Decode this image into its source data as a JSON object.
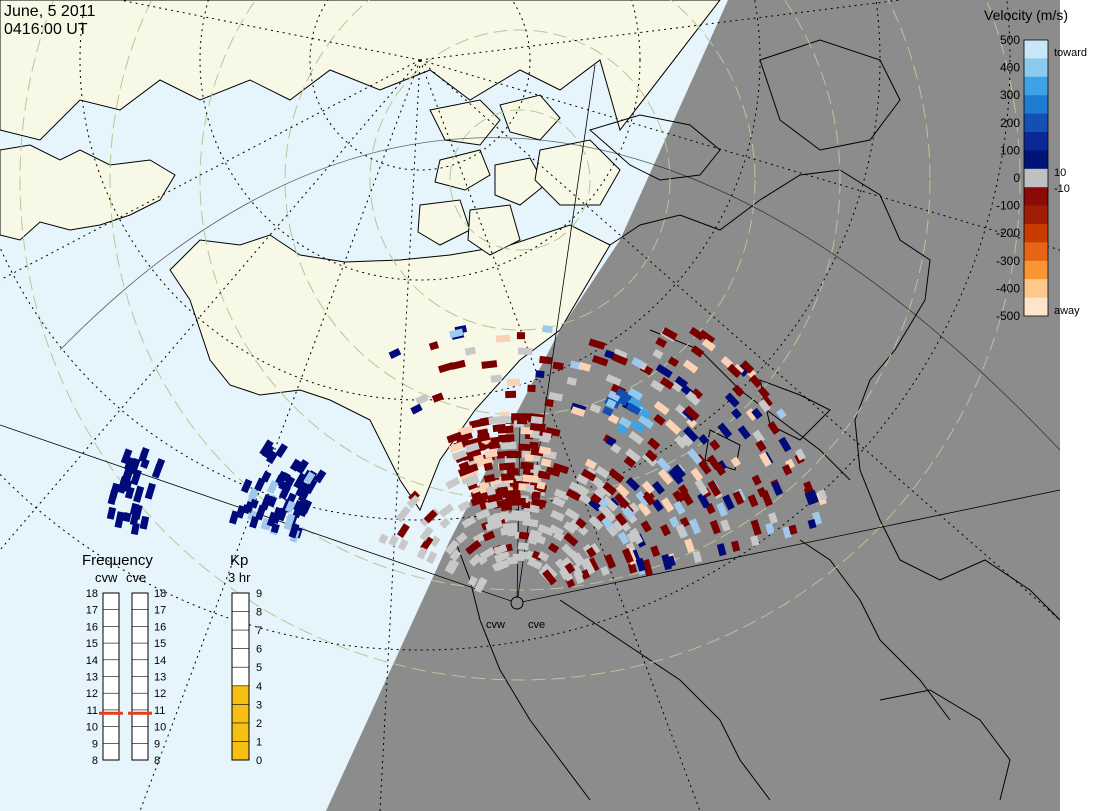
{
  "header": {
    "date": "June, 5 2011",
    "time": "0416:00 UT"
  },
  "velocity_legend": {
    "title": "Velocity (m/s)",
    "ticks": [
      "500",
      "400",
      "300",
      "200",
      "100",
      "0",
      "-100",
      "-200",
      "-300",
      "-400",
      "-500"
    ],
    "toward_label": "toward",
    "away_label": "away",
    "small_pos_label": "10",
    "small_neg_label": "-10",
    "colors": [
      "#c8e8fa",
      "#8ccaf0",
      "#3ea2e6",
      "#1e7cd2",
      "#1450b4",
      "#0a2896",
      "#001478",
      "#c0c0c0",
      "#8c0a0a",
      "#a01e05",
      "#c83c00",
      "#e66414",
      "#fa9632",
      "#fcc88c",
      "#fde6c8"
    ]
  },
  "frequency_panel": {
    "title": "Frequency",
    "radars": [
      "cvw",
      "cve"
    ],
    "ticks": [
      "18",
      "17",
      "16",
      "15",
      "14",
      "13",
      "12",
      "11",
      "10",
      "9",
      "8"
    ],
    "cvw_mhz": 10.8,
    "cve_mhz": 10.8,
    "marker_color": "#e0401a"
  },
  "kp_panel": {
    "title": "Kp",
    "subtitle": "3 hr",
    "ticks": [
      "9",
      "8",
      "7",
      "6",
      "5",
      "4",
      "3",
      "2",
      "1",
      "0"
    ],
    "value": 4,
    "fill_color": "#f5c013"
  },
  "map": {
    "radar_labels": [
      "cvw",
      "cve"
    ],
    "colors": {
      "ocean_day": "#e6f5fc",
      "land_day": "#f8f8e6",
      "night": "#8c8c8c",
      "coast": "#000000",
      "grid": "#000000",
      "mlat": "#b4c896"
    }
  }
}
